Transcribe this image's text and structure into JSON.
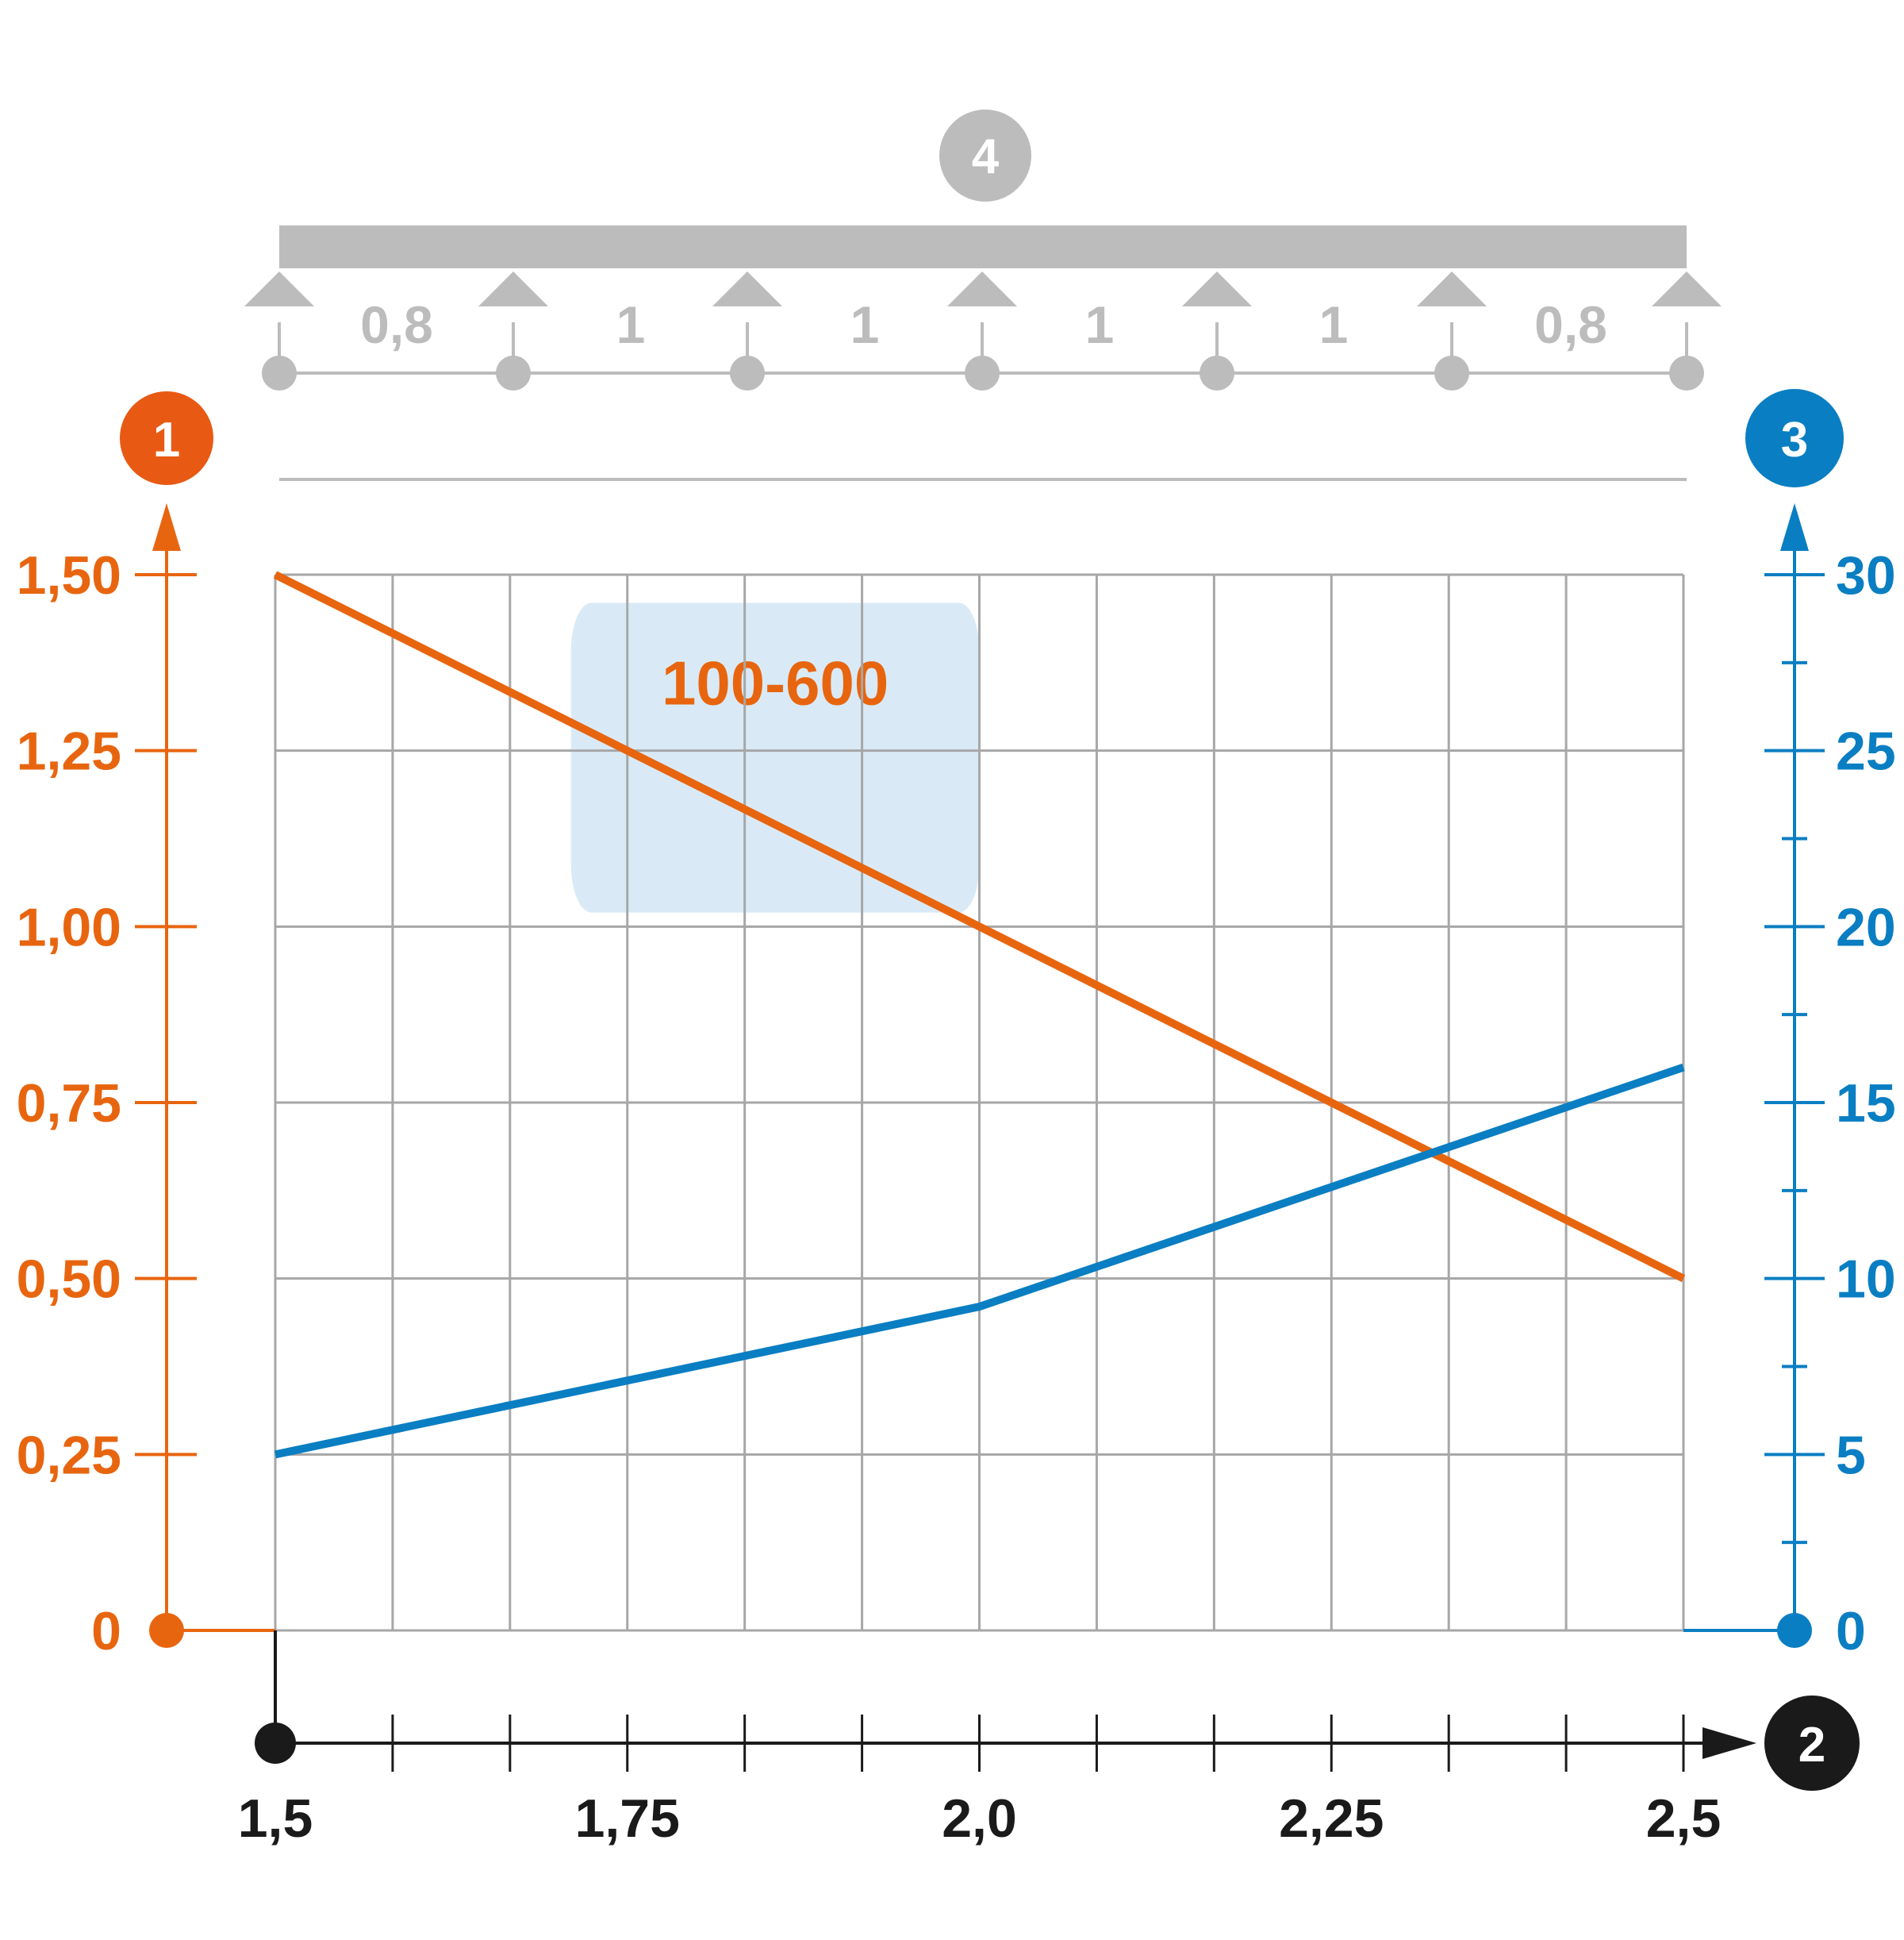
{
  "colors": {
    "orange": "#e8650f",
    "blue": "#0a7ec2",
    "black": "#1a1a1a",
    "grid": "#a7a7a7",
    "beam_gray": "#bcbcbc",
    "highlight_fill": "#d9eaf6"
  },
  "markers": {
    "left_axis": "1",
    "x_axis": "2",
    "right_axis": "3",
    "beam": "4"
  },
  "beam": {
    "span_labels": [
      "0,8",
      "1",
      "1",
      "1",
      "1",
      "0,8"
    ]
  },
  "chart_data": {
    "type": "line",
    "grid": true,
    "x": [
      1.5,
      2.0,
      2.5
    ],
    "x_ticks": [
      "1,5",
      "1,75",
      "2,0",
      "2,25",
      "2,5"
    ],
    "x_tick_values": [
      1.5,
      1.75,
      2.0,
      2.25,
      2.5
    ],
    "xlim": [
      1.5,
      2.5
    ],
    "ylim_left": [
      0,
      1.5
    ],
    "y_left_ticks": [
      "0",
      "0,25",
      "0,50",
      "0,75",
      "1,00",
      "1,25",
      "1,50"
    ],
    "y_left_tick_values": [
      0,
      0.25,
      0.5,
      0.75,
      1.0,
      1.25,
      1.5
    ],
    "ylim_right": [
      0,
      30
    ],
    "y_right_ticks": [
      "0",
      "5",
      "10",
      "15",
      "20",
      "25",
      "30"
    ],
    "y_right_tick_values": [
      0,
      5,
      10,
      15,
      20,
      25,
      30
    ],
    "series": [
      {
        "axis": "left",
        "color": "orange",
        "values": [
          1.5,
          1.0,
          0.5
        ]
      },
      {
        "axis": "right",
        "color": "blue",
        "values": [
          5.0,
          9.2,
          16.0
        ]
      }
    ],
    "annotation": {
      "text": "100-600",
      "x_range": [
        1.71,
        2.0
      ],
      "y_range": [
        1.02,
        1.46
      ]
    }
  }
}
